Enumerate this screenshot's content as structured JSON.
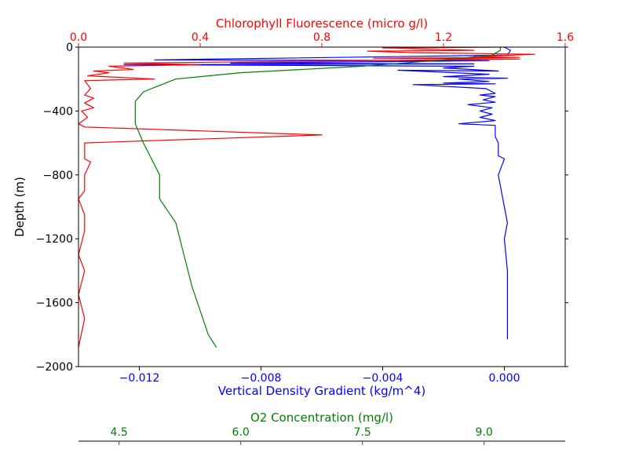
{
  "chart_data": {
    "type": "line",
    "ylabel": "Depth (m)",
    "ylim": [
      -2000,
      0
    ],
    "yticks": [
      0,
      -400,
      -800,
      -1200,
      -1600,
      -2000
    ],
    "ytick_labels": [
      "0",
      "−400",
      "−800",
      "−1200",
      "−1600",
      "−2000"
    ],
    "grid": false,
    "axes": {
      "bottom": {
        "label": "Vertical Density Gradient (kg/m^4)",
        "color": "#0000ff",
        "range": [
          -0.014,
          0.002
        ],
        "ticks": [
          -0.012,
          -0.008,
          -0.004,
          0.0
        ],
        "tick_labels": [
          "−0.012",
          "−0.008",
          "−0.004",
          "0.000"
        ]
      },
      "top": {
        "label": "Chlorophyll Fluorescence (micro g/l)",
        "color": "#ff0000",
        "range": [
          0.0,
          1.6
        ],
        "ticks": [
          0.0,
          0.4,
          0.8,
          1.2,
          1.6
        ],
        "tick_labels": [
          "0.0",
          "0.4",
          "0.8",
          "1.2",
          "1.6"
        ]
      },
      "o2": {
        "label": "O2 Concentration (mg/l)",
        "color": "#008000",
        "range": [
          4.0,
          10.0
        ],
        "ticks": [
          4.5,
          6.0,
          7.5,
          9.0
        ],
        "tick_labels": [
          "4.5",
          "6.0",
          "7.5",
          "9.0"
        ]
      }
    },
    "series": [
      {
        "axis": "bottom",
        "color": "#0000ff",
        "points": [
          [
            0.0,
            0
          ],
          [
            0.0002,
            -20
          ],
          [
            0.0001,
            -50
          ],
          [
            -0.0115,
            -80
          ],
          [
            -0.0005,
            -85
          ],
          [
            -0.009,
            -100
          ],
          [
            -0.001,
            -105
          ],
          [
            -0.0125,
            -110
          ],
          [
            -0.001,
            -120
          ],
          [
            -0.002,
            -130
          ],
          [
            -0.0002,
            -150
          ],
          [
            -0.0035,
            -145
          ],
          [
            -0.0005,
            -170
          ],
          [
            -0.002,
            -185
          ],
          [
            0.0001,
            -195
          ],
          [
            -0.0015,
            -200
          ],
          [
            -0.0005,
            -215
          ],
          [
            -0.002,
            -225
          ],
          [
            -0.0003,
            -230
          ],
          [
            -0.003,
            -235
          ],
          [
            -0.0006,
            -260
          ],
          [
            -0.0003,
            -290
          ],
          [
            -0.0008,
            -300
          ],
          [
            -0.0003,
            -310
          ],
          [
            -0.0007,
            -330
          ],
          [
            -0.0003,
            -345
          ],
          [
            -0.0012,
            -360
          ],
          [
            -0.0004,
            -380
          ],
          [
            -0.0008,
            -400
          ],
          [
            -0.0004,
            -420
          ],
          [
            -0.0008,
            -440
          ],
          [
            -0.0003,
            -460
          ],
          [
            -0.0015,
            -480
          ],
          [
            -0.0003,
            -490
          ],
          [
            -0.0003,
            -560
          ],
          [
            -0.0002,
            -600
          ],
          [
            -0.0002,
            -680
          ],
          [
            0.0,
            -700
          ],
          [
            -0.0002,
            -800
          ],
          [
            0.0,
            -1000
          ],
          [
            0.0001,
            -1100
          ],
          [
            0.0,
            -1200
          ],
          [
            0.0001,
            -1400
          ],
          [
            0.0001,
            -1600
          ],
          [
            0.0001,
            -1830
          ]
        ]
      },
      {
        "axis": "top",
        "color": "#ff0000",
        "points": [
          [
            1.4,
            0
          ],
          [
            1.0,
            -5
          ],
          [
            1.3,
            -20
          ],
          [
            0.95,
            -25
          ],
          [
            1.1,
            -35
          ],
          [
            1.5,
            -45
          ],
          [
            1.3,
            -60
          ],
          [
            1.45,
            -65
          ],
          [
            0.97,
            -70
          ],
          [
            1.45,
            -75
          ],
          [
            0.15,
            -100
          ],
          [
            0.4,
            -110
          ],
          [
            0.1,
            -120
          ],
          [
            0.18,
            -140
          ],
          [
            0.05,
            -150
          ],
          [
            0.1,
            -160
          ],
          [
            0.03,
            -180
          ],
          [
            0.25,
            -200
          ],
          [
            0.02,
            -210
          ],
          [
            0.04,
            -260
          ],
          [
            0.02,
            -300
          ],
          [
            0.05,
            -320
          ],
          [
            0.02,
            -350
          ],
          [
            0.05,
            -380
          ],
          [
            0.01,
            -400
          ],
          [
            0.03,
            -440
          ],
          [
            0.0,
            -480
          ],
          [
            0.02,
            -500
          ],
          [
            0.8,
            -550
          ],
          [
            0.02,
            -600
          ],
          [
            0.02,
            -700
          ],
          [
            0.04,
            -720
          ],
          [
            0.02,
            -800
          ],
          [
            0.02,
            -900
          ],
          [
            0.0,
            -950
          ],
          [
            0.02,
            -1050
          ],
          [
            0.02,
            -1150
          ],
          [
            0.0,
            -1300
          ],
          [
            0.02,
            -1400
          ],
          [
            0.0,
            -1550
          ],
          [
            0.02,
            -1700
          ],
          [
            0.0,
            -1880
          ]
        ]
      },
      {
        "axis": "o2",
        "color": "#008000",
        "points": [
          [
            9.2,
            0
          ],
          [
            9.2,
            -20
          ],
          [
            9.1,
            -50
          ],
          [
            8.5,
            -80
          ],
          [
            7.5,
            -120
          ],
          [
            6.0,
            -160
          ],
          [
            5.2,
            -200
          ],
          [
            5.0,
            -240
          ],
          [
            4.8,
            -280
          ],
          [
            4.7,
            -340
          ],
          [
            4.7,
            -400
          ],
          [
            4.7,
            -480
          ],
          [
            4.8,
            -600
          ],
          [
            4.9,
            -700
          ],
          [
            5.0,
            -800
          ],
          [
            5.0,
            -950
          ],
          [
            5.2,
            -1100
          ],
          [
            5.3,
            -1300
          ],
          [
            5.4,
            -1500
          ],
          [
            5.5,
            -1650
          ],
          [
            5.6,
            -1800
          ],
          [
            5.7,
            -1880
          ]
        ]
      }
    ]
  }
}
